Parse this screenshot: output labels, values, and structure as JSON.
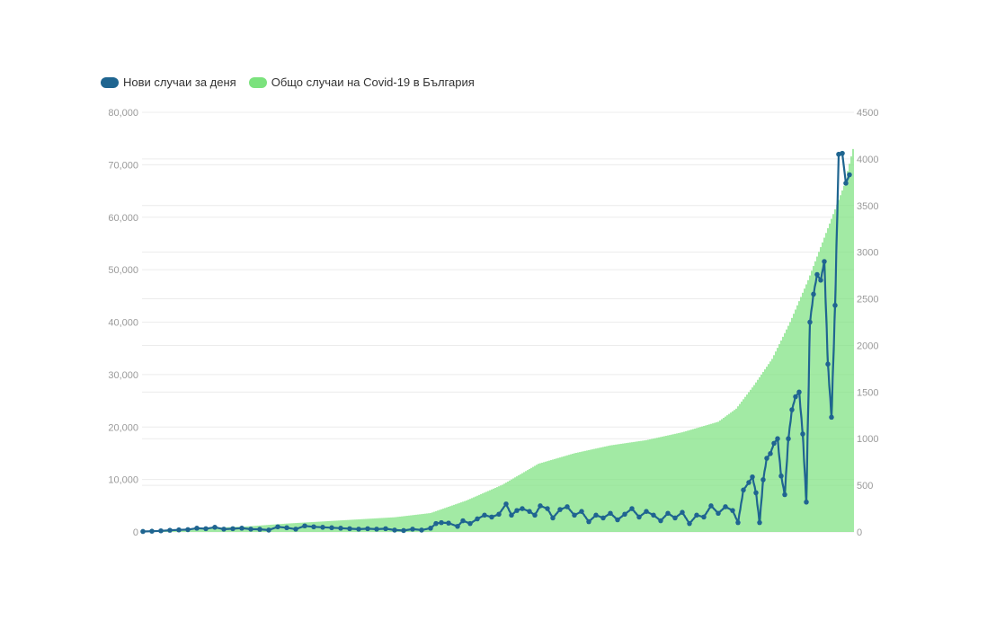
{
  "colors": {
    "daily": "#1f6590",
    "total": "#7be27d",
    "grid": "#ececec",
    "tick": "#9a9a9a"
  },
  "legend": {
    "daily_label": "Нови случаи за деня",
    "total_label": "Общо случаи на Covid-19 в България"
  },
  "chart_data": {
    "type": "bar+line",
    "title": "",
    "legend_position": "top-left",
    "grid": true,
    "left_axis": {
      "ylim": [
        0,
        80000
      ],
      "ticks": [
        "0",
        "10,000",
        "20,000",
        "30,000",
        "40,000",
        "50,000",
        "60,000",
        "70,000",
        "80,000"
      ],
      "tick_values": [
        0,
        10000,
        20000,
        30000,
        40000,
        50000,
        60000,
        70000,
        80000
      ]
    },
    "right_axis": {
      "ylim": [
        0,
        4500
      ],
      "ticks": [
        "0",
        "500",
        "1000",
        "1500",
        "2000",
        "2500",
        "3000",
        "3500",
        "4000",
        "4500"
      ],
      "tick_values": [
        0,
        500,
        1000,
        1500,
        2000,
        2500,
        3000,
        3500,
        4000,
        4500
      ]
    },
    "series": [
      {
        "name": "Общо случаи на Covid-19 в България",
        "type": "bar",
        "axis": "left",
        "anchors": [
          [
            0,
            0
          ],
          [
            20,
            300
          ],
          [
            40,
            800
          ],
          [
            60,
            1100
          ],
          [
            80,
            1600
          ],
          [
            100,
            2000
          ],
          [
            120,
            2400
          ],
          [
            140,
            2800
          ],
          [
            160,
            3600
          ],
          [
            180,
            6000
          ],
          [
            200,
            9000
          ],
          [
            220,
            13000
          ],
          [
            240,
            15000
          ],
          [
            260,
            16500
          ],
          [
            280,
            17500
          ],
          [
            300,
            19000
          ],
          [
            320,
            21000
          ],
          [
            330,
            23500
          ],
          [
            340,
            28000
          ],
          [
            350,
            33000
          ],
          [
            360,
            40000
          ],
          [
            370,
            48000
          ],
          [
            380,
            57000
          ],
          [
            390,
            66000
          ],
          [
            395,
            73000
          ]
        ]
      },
      {
        "name": "Нови случаи за деня",
        "type": "line",
        "axis": "right",
        "points": [
          [
            0,
            5
          ],
          [
            5,
            8
          ],
          [
            10,
            12
          ],
          [
            15,
            18
          ],
          [
            20,
            22
          ],
          [
            25,
            25
          ],
          [
            30,
            40
          ],
          [
            35,
            35
          ],
          [
            40,
            50
          ],
          [
            45,
            30
          ],
          [
            50,
            35
          ],
          [
            55,
            40
          ],
          [
            60,
            30
          ],
          [
            65,
            28
          ],
          [
            70,
            20
          ],
          [
            75,
            55
          ],
          [
            80,
            45
          ],
          [
            85,
            30
          ],
          [
            90,
            65
          ],
          [
            95,
            55
          ],
          [
            100,
            50
          ],
          [
            105,
            45
          ],
          [
            110,
            40
          ],
          [
            115,
            35
          ],
          [
            120,
            30
          ],
          [
            125,
            35
          ],
          [
            130,
            30
          ],
          [
            135,
            35
          ],
          [
            140,
            20
          ],
          [
            145,
            15
          ],
          [
            150,
            30
          ],
          [
            155,
            20
          ],
          [
            160,
            40
          ],
          [
            163,
            90
          ],
          [
            166,
            100
          ],
          [
            170,
            95
          ],
          [
            175,
            60
          ],
          [
            178,
            120
          ],
          [
            182,
            90
          ],
          [
            186,
            140
          ],
          [
            190,
            180
          ],
          [
            194,
            160
          ],
          [
            198,
            190
          ],
          [
            202,
            300
          ],
          [
            205,
            180
          ],
          [
            208,
            230
          ],
          [
            211,
            250
          ],
          [
            215,
            220
          ],
          [
            218,
            180
          ],
          [
            221,
            280
          ],
          [
            225,
            250
          ],
          [
            228,
            150
          ],
          [
            232,
            240
          ],
          [
            236,
            270
          ],
          [
            240,
            180
          ],
          [
            244,
            220
          ],
          [
            248,
            110
          ],
          [
            252,
            180
          ],
          [
            256,
            150
          ],
          [
            260,
            200
          ],
          [
            264,
            130
          ],
          [
            268,
            190
          ],
          [
            272,
            250
          ],
          [
            276,
            160
          ],
          [
            280,
            220
          ],
          [
            284,
            180
          ],
          [
            288,
            120
          ],
          [
            292,
            200
          ],
          [
            296,
            150
          ],
          [
            300,
            210
          ],
          [
            304,
            90
          ],
          [
            308,
            180
          ],
          [
            312,
            160
          ],
          [
            316,
            280
          ],
          [
            320,
            200
          ],
          [
            324,
            270
          ],
          [
            328,
            230
          ],
          [
            331,
            100
          ],
          [
            334,
            450
          ],
          [
            337,
            530
          ],
          [
            339,
            590
          ],
          [
            341,
            420
          ],
          [
            343,
            100
          ],
          [
            345,
            560
          ],
          [
            347,
            790
          ],
          [
            349,
            840
          ],
          [
            351,
            950
          ],
          [
            353,
            1000
          ],
          [
            355,
            600
          ],
          [
            357,
            400
          ],
          [
            359,
            1000
          ],
          [
            361,
            1310
          ],
          [
            363,
            1450
          ],
          [
            365,
            1500
          ],
          [
            367,
            1050
          ],
          [
            369,
            320
          ],
          [
            371,
            2250
          ],
          [
            373,
            2550
          ],
          [
            375,
            2760
          ],
          [
            377,
            2700
          ],
          [
            379,
            2900
          ],
          [
            381,
            1800
          ],
          [
            383,
            1230
          ],
          [
            385,
            2430
          ],
          [
            387,
            4050
          ],
          [
            389,
            4060
          ],
          [
            391,
            3740
          ],
          [
            393,
            3830
          ]
        ]
      }
    ]
  }
}
